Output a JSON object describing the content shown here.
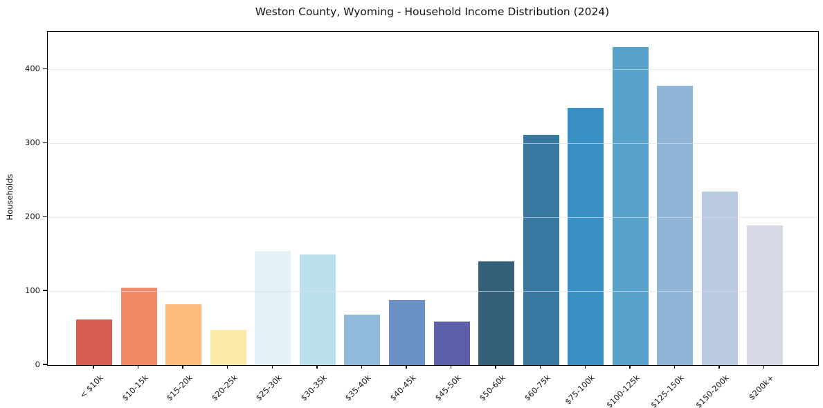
{
  "chart_data": {
    "type": "bar",
    "title": "Weston County, Wyoming - Household Income Distribution (2024)",
    "xlabel": "",
    "ylabel": "Households",
    "categories": [
      "< $10k",
      "$10-15k",
      "$15-20k",
      "$20-25k",
      "$25-30k",
      "$30-35k",
      "$35-40k",
      "$40-45k",
      "$45-50k",
      "$50-60k",
      "$60-75k",
      "$75-100k",
      "$100-125k",
      "$125-150k",
      "$150-200k",
      "$200k+"
    ],
    "values": [
      62,
      105,
      82,
      48,
      154,
      150,
      68,
      88,
      59,
      140,
      312,
      348,
      430,
      378,
      235,
      189
    ],
    "bar_colors": [
      "#d65d53",
      "#f28a67",
      "#fcbb7a",
      "#fde9a8",
      "#e4f1f6",
      "#bcdfec",
      "#8fbad9",
      "#6a90c5",
      "#5c60aa",
      "#35607a",
      "#38789f",
      "#3990c5",
      "#58a2c9",
      "#90b5d7",
      "#b9c9df",
      "#d7d8e5"
    ],
    "yticks": [
      0,
      100,
      200,
      300,
      400
    ],
    "ylim": [
      0,
      451
    ],
    "grid": "horizontal",
    "legend": "none"
  },
  "colors": {
    "gridline": "rgba(220,223,232,0.65)",
    "spine": "#000000",
    "tick_text": "#1a1a1a",
    "background": "#ffffff"
  }
}
